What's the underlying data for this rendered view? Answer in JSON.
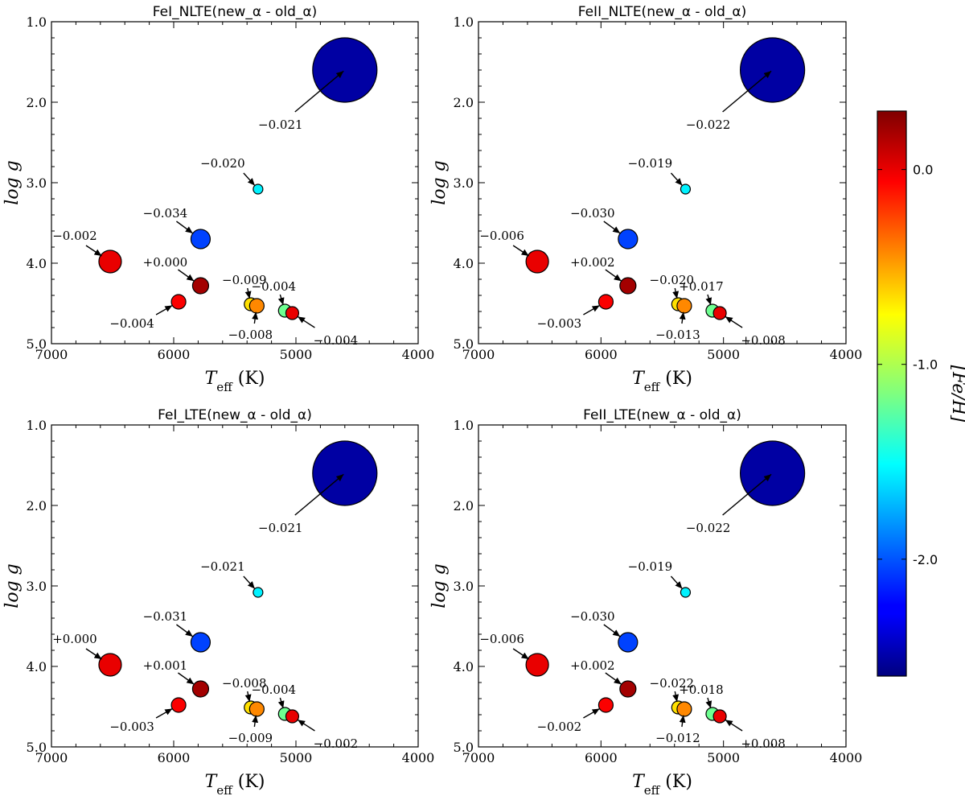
{
  "chart_data": {
    "type": "scatter",
    "shared": {
      "xlabel": "T_eff (K)",
      "xlabel_main": "T",
      "xlabel_sub": "eff",
      "xlabel_unit": " (K)",
      "ylabel": "log g",
      "xlim": [
        7000,
        4000
      ],
      "ylim": [
        5.0,
        1.0
      ],
      "xticks": [
        7000,
        6000,
        5000,
        4000
      ],
      "xtick_labels": [
        "7000",
        "6000",
        "5000",
        "4000"
      ],
      "yticks": [
        1.0,
        2.0,
        3.0,
        4.0,
        5.0
      ],
      "ytick_labels": [
        "1.0",
        "2.0",
        "3.0",
        "4.0",
        "5.0"
      ],
      "stars": [
        {
          "teff": 4600,
          "logg": 1.6,
          "feh": -2.5,
          "size": 40
        },
        {
          "teff": 5310,
          "logg": 3.08,
          "feh": -1.55,
          "size": 6
        },
        {
          "teff": 5780,
          "logg": 3.7,
          "feh": -2.05,
          "size": 12
        },
        {
          "teff": 6520,
          "logg": 3.98,
          "feh": 0.0,
          "size": 14
        },
        {
          "teff": 5780,
          "logg": 4.28,
          "feh": 0.2,
          "size": 10
        },
        {
          "teff": 5960,
          "logg": 4.48,
          "feh": -0.05,
          "size": 9
        },
        {
          "teff": 5370,
          "logg": 4.51,
          "feh": -0.7,
          "size": 8
        },
        {
          "teff": 5320,
          "logg": 4.53,
          "feh": -0.45,
          "size": 9
        },
        {
          "teff": 5090,
          "logg": 4.59,
          "feh": -1.2,
          "size": 8
        },
        {
          "teff": 5030,
          "logg": 4.62,
          "feh": 0.0,
          "size": 8
        }
      ]
    },
    "panels": [
      {
        "title": "FeI_NLTE(new_α - old_α)",
        "labels": [
          "−0.021",
          "−0.020",
          "−0.034",
          "−0.002",
          "+0.000",
          "−0.004",
          "−0.009",
          "−0.008",
          "−0.004",
          "−0.004"
        ]
      },
      {
        "title": "FeII_NLTE(new_α - old_α)",
        "labels": [
          "−0.022",
          "−0.019",
          "−0.030",
          "−0.006",
          "+0.002",
          "−0.003",
          "−0.020",
          "−0.013",
          "+0.017",
          "+0.008"
        ]
      },
      {
        "title": "FeI_LTE(new_α - old_α)",
        "labels": [
          "−0.021",
          "−0.021",
          "−0.031",
          "+0.000",
          "+0.001",
          "−0.003",
          "−0.008",
          "−0.009",
          "−0.004",
          "−0.002"
        ]
      },
      {
        "title": "FeII_LTE(new_α - old_α)",
        "labels": [
          "−0.022",
          "−0.019",
          "−0.030",
          "−0.006",
          "+0.002",
          "−0.002",
          "−0.022",
          "−0.012",
          "+0.018",
          "+0.008"
        ]
      }
    ],
    "colorbar": {
      "label": "[Fe/H]",
      "range": [
        -2.6,
        0.3
      ],
      "ticks": [
        0.0,
        -1.0,
        -2.0
      ],
      "tick_labels": [
        "0.0",
        "-1.0",
        "-2.0"
      ],
      "colormap": "jet"
    }
  }
}
